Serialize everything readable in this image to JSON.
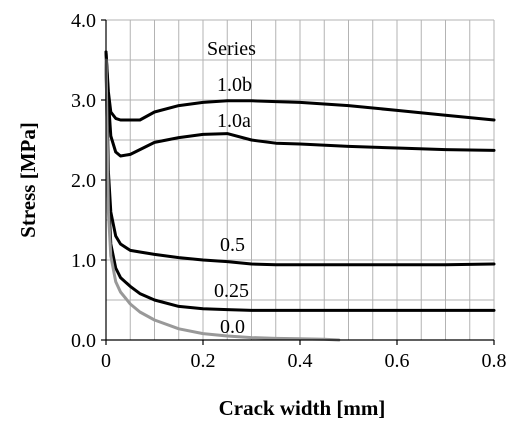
{
  "chart_data": {
    "type": "line",
    "xlabel": "Crack  width [mm]",
    "ylabel": "Stress [MPa]",
    "xlim": [
      0,
      0.8
    ],
    "ylim": [
      0,
      4.0
    ],
    "x_ticks": [
      "0",
      "0.2",
      "0.4",
      "0.6",
      "0.8"
    ],
    "y_ticks": [
      "0.0",
      "1.0",
      "2.0",
      "3.0",
      "4.0"
    ],
    "grid": true,
    "legend_title": "Series",
    "series": [
      {
        "name": "1.0b",
        "color": "#000000",
        "x": [
          0,
          0.005,
          0.01,
          0.02,
          0.03,
          0.05,
          0.07,
          0.1,
          0.15,
          0.2,
          0.25,
          0.3,
          0.35,
          0.4,
          0.5,
          0.6,
          0.7,
          0.8
        ],
        "y": [
          3.6,
          3.1,
          2.85,
          2.77,
          2.75,
          2.75,
          2.75,
          2.85,
          2.93,
          2.97,
          2.99,
          2.99,
          2.98,
          2.97,
          2.93,
          2.87,
          2.81,
          2.75
        ]
      },
      {
        "name": "1.0a",
        "color": "#000000",
        "x": [
          0,
          0.005,
          0.01,
          0.02,
          0.03,
          0.05,
          0.07,
          0.1,
          0.15,
          0.2,
          0.25,
          0.3,
          0.35,
          0.4,
          0.5,
          0.6,
          0.7,
          0.8
        ],
        "y": [
          3.6,
          3.0,
          2.55,
          2.35,
          2.3,
          2.32,
          2.38,
          2.47,
          2.53,
          2.57,
          2.58,
          2.5,
          2.46,
          2.45,
          2.42,
          2.4,
          2.38,
          2.37
        ]
      },
      {
        "name": "0.5",
        "color": "#000000",
        "x": [
          0,
          0.005,
          0.01,
          0.02,
          0.03,
          0.05,
          0.07,
          0.1,
          0.15,
          0.2,
          0.25,
          0.3,
          0.35,
          0.4,
          0.5,
          0.6,
          0.7,
          0.8
        ],
        "y": [
          3.5,
          2.1,
          1.6,
          1.3,
          1.2,
          1.12,
          1.1,
          1.07,
          1.03,
          1.0,
          0.98,
          0.95,
          0.94,
          0.94,
          0.94,
          0.94,
          0.94,
          0.95
        ]
      },
      {
        "name": "0.25",
        "color": "#000000",
        "x": [
          0,
          0.005,
          0.01,
          0.02,
          0.03,
          0.05,
          0.07,
          0.1,
          0.15,
          0.2,
          0.25,
          0.3,
          0.4,
          0.5,
          0.6,
          0.7,
          0.8
        ],
        "y": [
          3.5,
          1.8,
          1.2,
          0.9,
          0.78,
          0.67,
          0.58,
          0.5,
          0.42,
          0.39,
          0.38,
          0.37,
          0.37,
          0.37,
          0.37,
          0.37,
          0.37
        ]
      },
      {
        "name": "0.0",
        "color": "#999999",
        "x": [
          0,
          0.005,
          0.01,
          0.02,
          0.03,
          0.05,
          0.07,
          0.1,
          0.15,
          0.2,
          0.25,
          0.3,
          0.35,
          0.4,
          0.45,
          0.48
        ],
        "y": [
          3.5,
          1.6,
          1.05,
          0.73,
          0.6,
          0.45,
          0.35,
          0.25,
          0.14,
          0.08,
          0.05,
          0.03,
          0.02,
          0.015,
          0.01,
          0.0
        ]
      }
    ]
  }
}
